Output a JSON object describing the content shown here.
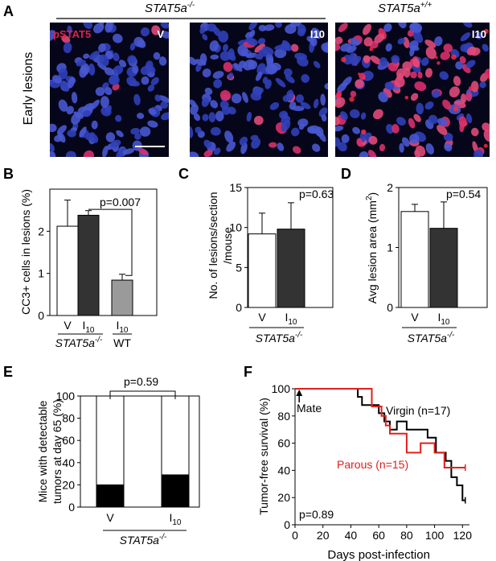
{
  "panel_letters": [
    "A",
    "B",
    "C",
    "D",
    "E",
    "F"
  ],
  "colors": {
    "nucleus_blue": "#3848c8",
    "pstat5_red": "#e0204a",
    "parous_red": "#e0201c",
    "bar_white": "#ffffff",
    "bar_dark": "#333333",
    "bar_gray": "#9a9a9a",
    "bar_black": "#000000",
    "micrograph_bg": "#06061a"
  },
  "panelA": {
    "genotype_ko": "STAT5a",
    "genotype_ko_sup": "-/-",
    "genotype_wt": "STAT5a",
    "genotype_wt_sup": "+/+",
    "row_label": "Early lesions",
    "stain_label": "pSTAT5",
    "images": [
      {
        "tag": "V",
        "red_level": 0.04
      },
      {
        "tag": "I10",
        "red_level": 0.08
      },
      {
        "tag": "I10",
        "red_level": 0.6
      }
    ]
  },
  "chart_data": [
    {
      "id": "B",
      "type": "bar",
      "categories": [
        "V",
        "I10",
        "I10"
      ],
      "values": [
        2.12,
        2.38,
        0.84
      ],
      "errors": [
        0.62,
        0.11,
        0.14
      ],
      "ylabel": "CC3+ cells in lesions (%)",
      "ylim": [
        0,
        3
      ],
      "yticks": [
        "0",
        "1",
        "2"
      ],
      "ytick_values": [
        0,
        1,
        2
      ],
      "annotation": "p=0.007",
      "group_labels": [
        "STAT5a",
        "WT"
      ],
      "group_label_sup": "-/-",
      "bar_colors": [
        "#ffffff",
        "#333333",
        "#9a9a9a"
      ]
    },
    {
      "id": "C",
      "type": "bar",
      "categories": [
        "V",
        "I10"
      ],
      "values": [
        9.2,
        9.8
      ],
      "errors": [
        2.6,
        3.3
      ],
      "ylabel": "No. of lesions/section /mouse",
      "ylabel_lines": [
        "No. of lesions/section",
        "/mouse"
      ],
      "ylim": [
        0,
        15
      ],
      "yticks": [
        "0",
        "5",
        "10",
        "15"
      ],
      "ytick_values": [
        0,
        5,
        10,
        15
      ],
      "annotation": "p=0.63",
      "group_label": "STAT5a",
      "group_label_sup": "-/-",
      "bar_colors": [
        "#ffffff",
        "#333333"
      ]
    },
    {
      "id": "D",
      "type": "bar",
      "categories": [
        "V",
        "I10"
      ],
      "values": [
        1.6,
        1.32
      ],
      "errors": [
        0.12,
        0.44
      ],
      "ylabel": "Avg lesion area (mm2)",
      "ylim": [
        0,
        2
      ],
      "yticks": [
        "0",
        "1",
        "2"
      ],
      "ytick_values": [
        0,
        1,
        2
      ],
      "annotation": "p=0.54",
      "group_label": "STAT5a",
      "group_label_sup": "-/-",
      "bar_colors": [
        "#ffffff",
        "#333333"
      ]
    },
    {
      "id": "E",
      "type": "bar",
      "stacked": true,
      "categories": [
        "V",
        "I10"
      ],
      "series": [
        {
          "values": [
            20,
            29
          ],
          "color": "#000000"
        },
        {
          "values": [
            80,
            71
          ],
          "color": "#ffffff"
        }
      ],
      "ylabel": "Mice with detectable tumors at day 65 (%)",
      "ylabel_lines": [
        "Mice with detectable",
        "tumors at day 65 (%)"
      ],
      "ylim": [
        0,
        100
      ],
      "yticks": [
        "0",
        "20",
        "40",
        "60",
        "80",
        "100"
      ],
      "ytick_values": [
        0,
        20,
        40,
        60,
        80,
        100
      ],
      "annotation": "p=0.59",
      "group_label": "STAT5a",
      "group_label_sup": "-/-"
    },
    {
      "id": "F",
      "type": "line",
      "step": true,
      "xlabel": "Days post-infection",
      "ylabel": "Tumor-free survival (%)",
      "xlim": [
        0,
        125
      ],
      "ylim": [
        0,
        100
      ],
      "xticks": [
        "0",
        "20",
        "40",
        "60",
        "80",
        "100",
        "120"
      ],
      "xtick_values": [
        0,
        20,
        40,
        60,
        80,
        100,
        120
      ],
      "yticks": [
        "0",
        "20",
        "40",
        "60",
        "80",
        "100"
      ],
      "ytick_values": [
        0,
        20,
        40,
        60,
        80,
        100
      ],
      "annotation_mate": "Mate",
      "pvalue": "p=0.89",
      "series": [
        {
          "name": "Virgin (n=17)",
          "color": "#000000",
          "x": [
            0,
            45,
            48,
            60,
            64,
            68,
            73,
            80,
            95,
            101,
            108,
            112,
            116,
            120,
            122
          ],
          "y": [
            100,
            94,
            88,
            82,
            76,
            70,
            76,
            70,
            64,
            53,
            47,
            35,
            29,
            18,
            18
          ]
        },
        {
          "name": "Parous (n=15)",
          "color": "#e0201c",
          "x": [
            0,
            55,
            62,
            65,
            68,
            80,
            90,
            100,
            107,
            122
          ],
          "y": [
            100,
            87,
            80,
            73,
            67,
            53,
            60,
            53,
            42,
            42
          ]
        }
      ]
    }
  ]
}
